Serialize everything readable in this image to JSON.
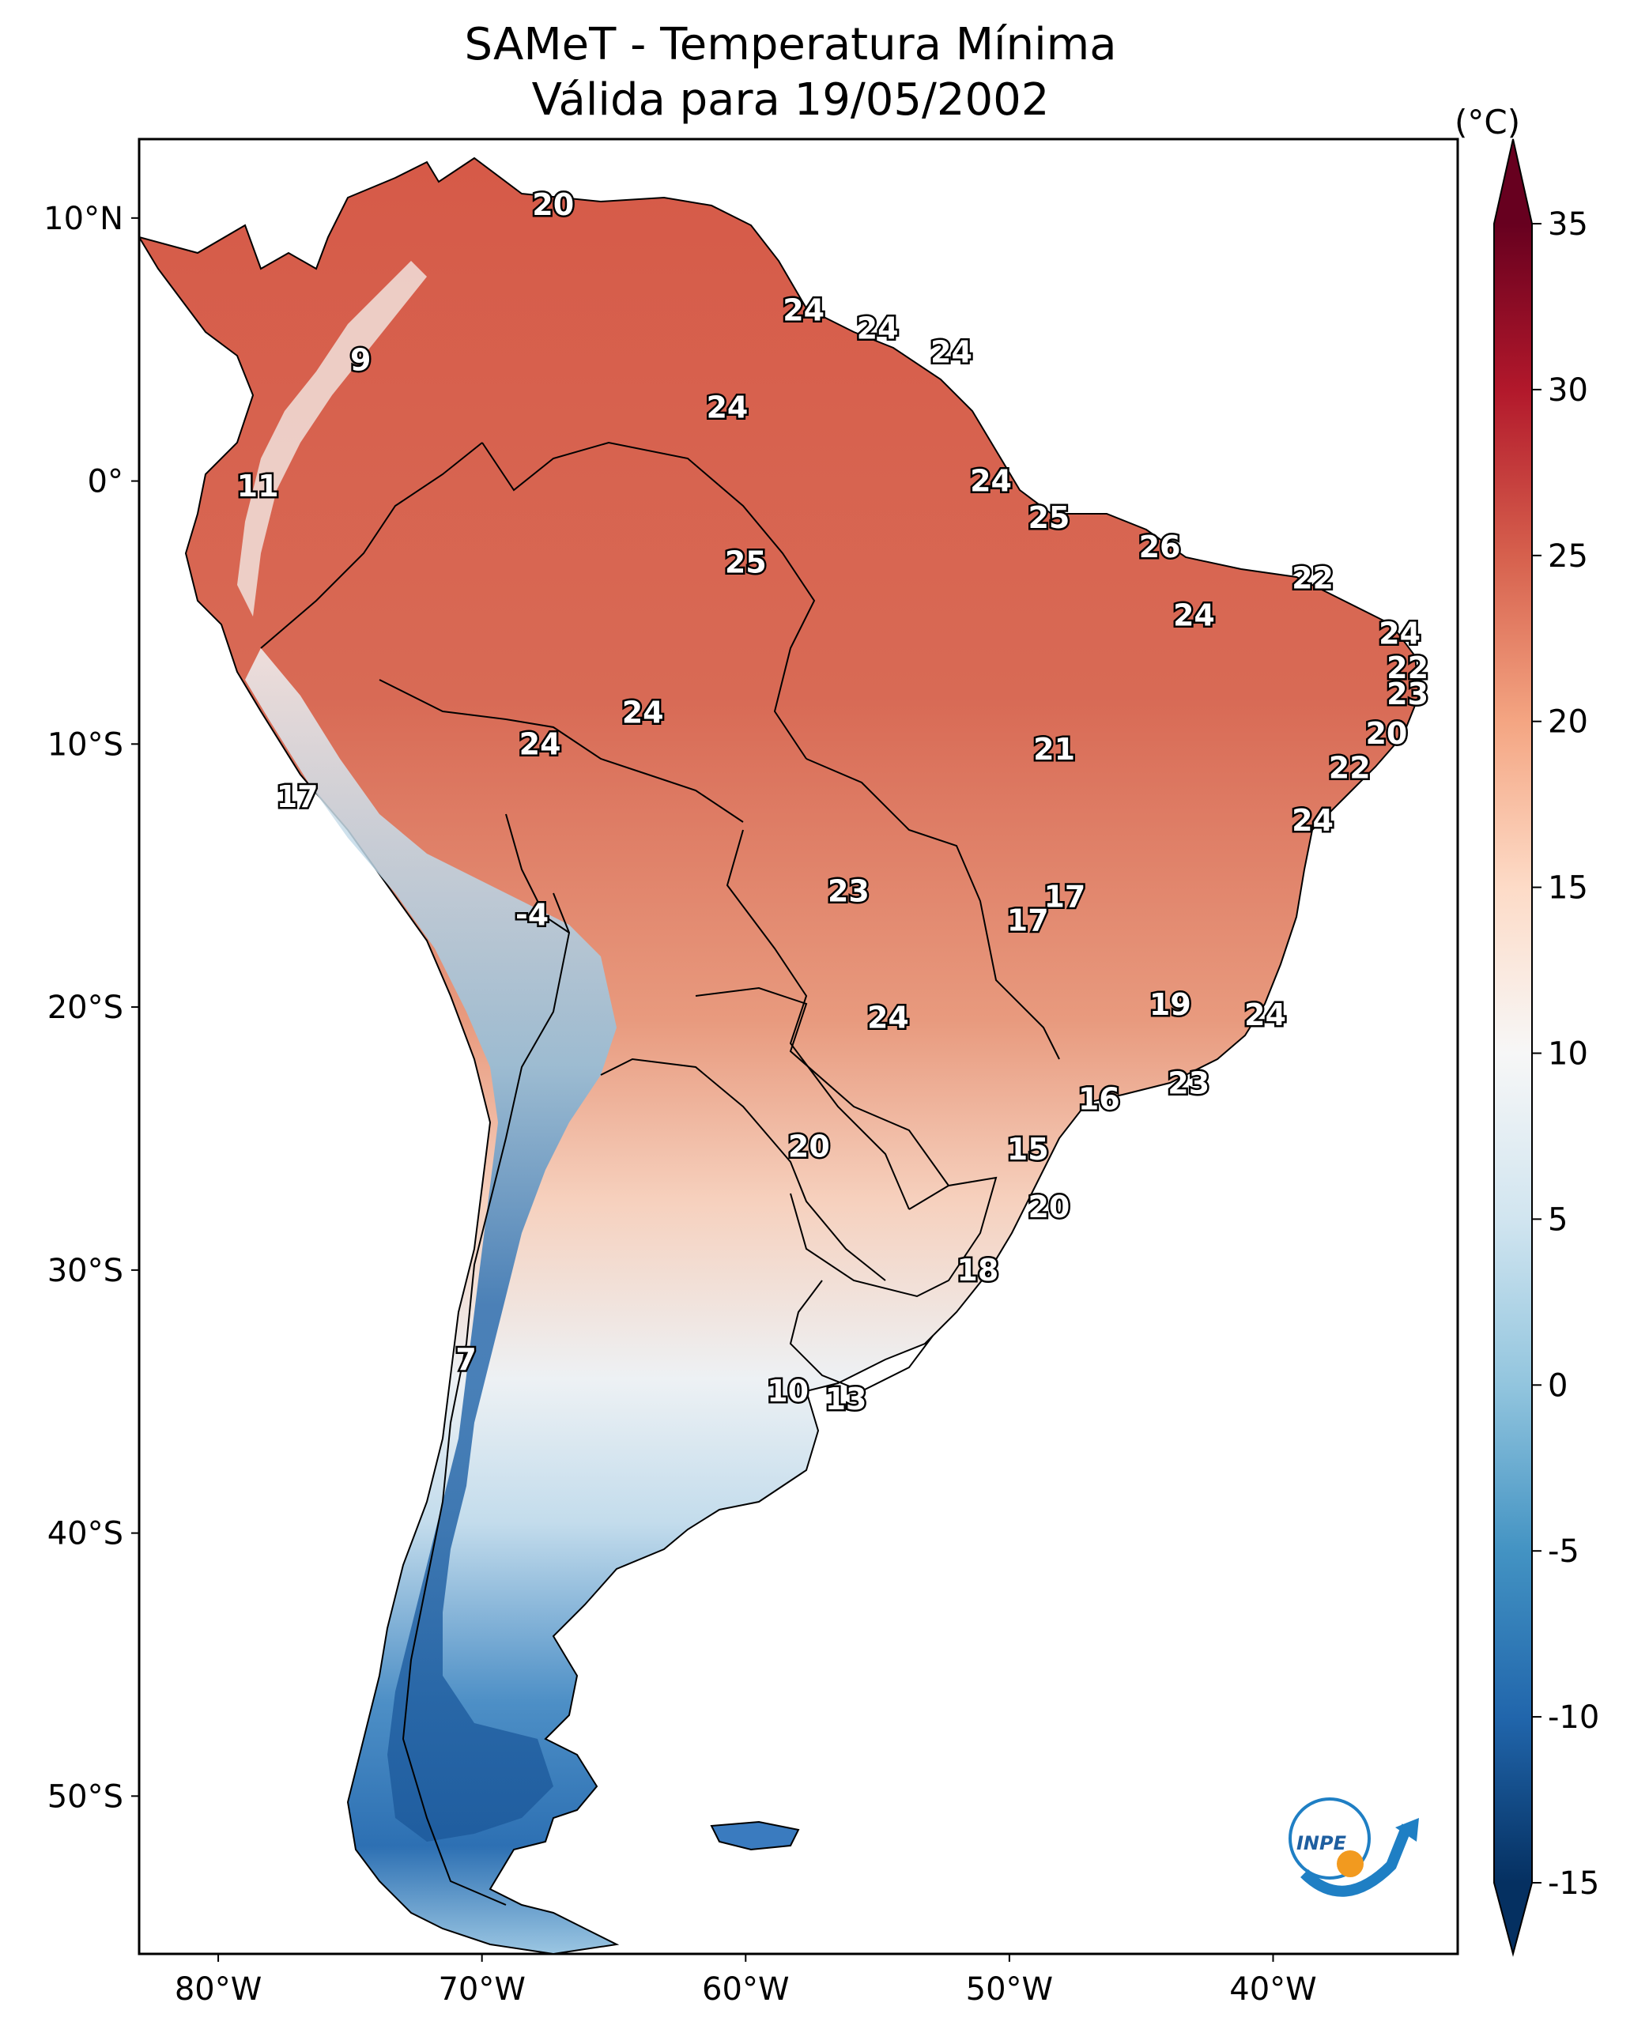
{
  "title_line1": "SAMeT - Temperatura Mínima",
  "title_line2": "Válida para 19/05/2002",
  "map": {
    "lon_range": [
      -83,
      -33
    ],
    "lat_range": [
      -56,
      13
    ],
    "lat_ticks": [
      {
        "value": 10,
        "label": "10°N"
      },
      {
        "value": 0,
        "label": "0°"
      },
      {
        "value": -10,
        "label": "10°S"
      },
      {
        "value": -20,
        "label": "20°S"
      },
      {
        "value": -30,
        "label": "30°S"
      },
      {
        "value": -40,
        "label": "40°S"
      },
      {
        "value": -50,
        "label": "50°S"
      }
    ],
    "lon_ticks": [
      {
        "value": -80,
        "label": "80°W"
      },
      {
        "value": -70,
        "label": "70°W"
      },
      {
        "value": -60,
        "label": "60°W"
      },
      {
        "value": -50,
        "label": "50°W"
      },
      {
        "value": -40,
        "label": "40°W"
      }
    ],
    "station_values": [
      {
        "lon": -67.3,
        "lat": 10.5,
        "value": "20"
      },
      {
        "lon": -57.8,
        "lat": 6.5,
        "value": "24"
      },
      {
        "lon": -55.0,
        "lat": 5.8,
        "value": "24"
      },
      {
        "lon": -52.2,
        "lat": 4.9,
        "value": "24"
      },
      {
        "lon": -74.6,
        "lat": 4.6,
        "value": "9"
      },
      {
        "lon": -60.7,
        "lat": 2.8,
        "value": "24"
      },
      {
        "lon": -78.5,
        "lat": -0.2,
        "value": "11"
      },
      {
        "lon": -50.7,
        "lat": 0.0,
        "value": "24"
      },
      {
        "lon": -48.5,
        "lat": -1.4,
        "value": "25"
      },
      {
        "lon": -60.0,
        "lat": -3.1,
        "value": "25"
      },
      {
        "lon": -44.3,
        "lat": -2.5,
        "value": "26"
      },
      {
        "lon": -38.5,
        "lat": -3.7,
        "value": "22"
      },
      {
        "lon": -43.0,
        "lat": -5.1,
        "value": "24"
      },
      {
        "lon": -35.2,
        "lat": -5.8,
        "value": "24"
      },
      {
        "lon": -34.9,
        "lat": -7.1,
        "value": "22"
      },
      {
        "lon": -34.9,
        "lat": -8.1,
        "value": "23"
      },
      {
        "lon": -63.9,
        "lat": -8.8,
        "value": "24"
      },
      {
        "lon": -67.8,
        "lat": -10.0,
        "value": "24"
      },
      {
        "lon": -48.3,
        "lat": -10.2,
        "value": "21"
      },
      {
        "lon": -35.7,
        "lat": -9.6,
        "value": "20"
      },
      {
        "lon": -37.1,
        "lat": -10.9,
        "value": "22"
      },
      {
        "lon": -77.0,
        "lat": -12.0,
        "value": "17"
      },
      {
        "lon": -38.5,
        "lat": -12.9,
        "value": "24"
      },
      {
        "lon": -56.1,
        "lat": -15.6,
        "value": "23"
      },
      {
        "lon": -47.9,
        "lat": -15.8,
        "value": "17"
      },
      {
        "lon": -49.3,
        "lat": -16.7,
        "value": "17"
      },
      {
        "lon": -68.1,
        "lat": -16.5,
        "value": "-4"
      },
      {
        "lon": -43.9,
        "lat": -19.9,
        "value": "19"
      },
      {
        "lon": -54.6,
        "lat": -20.4,
        "value": "24"
      },
      {
        "lon": -40.3,
        "lat": -20.3,
        "value": "24"
      },
      {
        "lon": -43.2,
        "lat": -22.9,
        "value": "23"
      },
      {
        "lon": -46.6,
        "lat": -23.5,
        "value": "16"
      },
      {
        "lon": -57.6,
        "lat": -25.3,
        "value": "20"
      },
      {
        "lon": -49.3,
        "lat": -25.4,
        "value": "15"
      },
      {
        "lon": -48.5,
        "lat": -27.6,
        "value": "20"
      },
      {
        "lon": -51.2,
        "lat": -30.0,
        "value": "18"
      },
      {
        "lon": -70.6,
        "lat": -33.4,
        "value": "7"
      },
      {
        "lon": -58.4,
        "lat": -34.6,
        "value": "10"
      },
      {
        "lon": -56.2,
        "lat": -34.9,
        "value": "13"
      }
    ]
  },
  "colorbar": {
    "unit": "(°C)",
    "min": -15,
    "max": 35,
    "ticks": [
      {
        "value": 35,
        "label": "35"
      },
      {
        "value": 30,
        "label": "30"
      },
      {
        "value": 25,
        "label": "25"
      },
      {
        "value": 20,
        "label": "20"
      },
      {
        "value": 15,
        "label": "15"
      },
      {
        "value": 10,
        "label": "10"
      },
      {
        "value": 5,
        "label": "5"
      },
      {
        "value": 0,
        "label": "0"
      },
      {
        "value": -5,
        "label": "-5"
      },
      {
        "value": -10,
        "label": "-10"
      },
      {
        "value": -15,
        "label": "-15"
      }
    ],
    "colors": [
      "#053061",
      "#2166ac",
      "#4393c3",
      "#92c5de",
      "#d1e5f0",
      "#f7f7f7",
      "#fddbc7",
      "#f4a582",
      "#d6604d",
      "#b2182b",
      "#67001f"
    ]
  },
  "logo_text": "INPE",
  "logo_colors": {
    "blue": "#1f7fc4",
    "orange": "#f29a1f"
  }
}
